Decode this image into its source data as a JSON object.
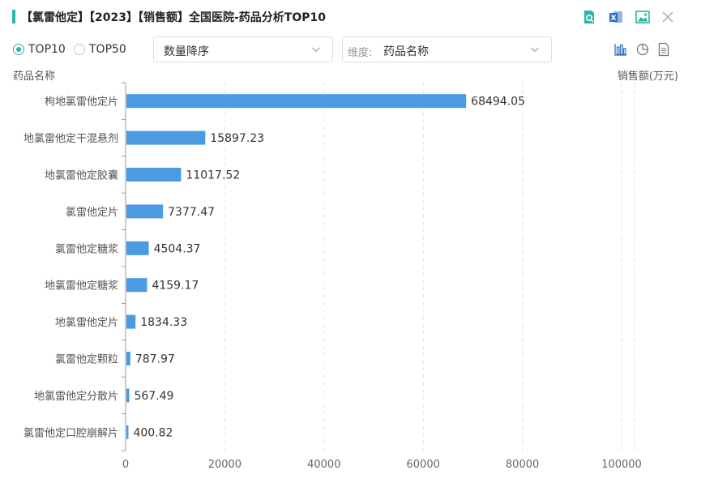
{
  "header": {
    "title": "【氯雷他定】【2023】【销售额】全国医院-药品分析TOP10",
    "accent_color": "#2cb7a4",
    "icons": [
      "search-report-icon",
      "excel-export-icon",
      "image-export-icon",
      "close-icon"
    ]
  },
  "controls": {
    "radio_top10": "TOP10",
    "radio_top50": "TOP50",
    "selected": "TOP10",
    "sort_select": "数量降序",
    "dimension_prefix": "维度:",
    "dimension_select": "药品名称",
    "view_icons": [
      "bar-chart-icon",
      "pie-chart-icon",
      "table-view-icon"
    ]
  },
  "chart_data": {
    "type": "bar",
    "orientation": "horizontal",
    "categories": [
      "枸地氯雷他定片",
      "地氯雷他定干混悬剂",
      "地氯雷他定胶囊",
      "氯雷他定片",
      "氯雷他定糖浆",
      "地氯雷他定糖浆",
      "地氯雷他定片",
      "氯雷他定颗粒",
      "地氯雷他定分散片",
      "氯雷他定口腔崩解片"
    ],
    "values": [
      68494.05,
      15897.23,
      11017.52,
      7377.47,
      4504.37,
      4159.17,
      1834.33,
      787.97,
      567.49,
      400.82
    ],
    "value_labels": [
      "68494.05",
      "15897.23",
      "11017.52",
      "7377.47",
      "4504.37",
      "4159.17",
      "1834.33",
      "787.97",
      "567.49",
      "400.82"
    ],
    "ylabel": "药品名称",
    "xlabel": "销售额(万元)",
    "xlim": [
      0,
      100000
    ],
    "xticks": [
      0,
      20000,
      40000,
      60000,
      80000,
      100000
    ],
    "xtick_labels": [
      "0",
      "20000",
      "40000",
      "60000",
      "80000",
      "100000"
    ],
    "grid": true,
    "bar_color": "#4a9be0"
  }
}
